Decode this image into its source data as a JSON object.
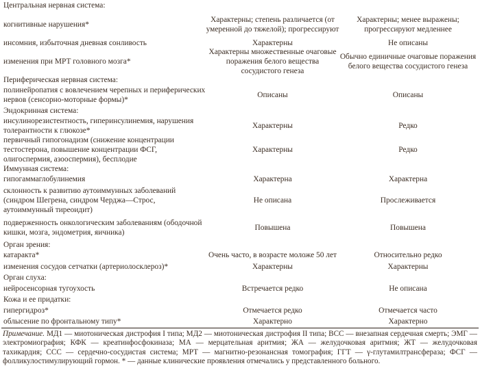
{
  "rows": [
    {
      "label": "Центральная нервная система:",
      "md1": "",
      "md2": ""
    },
    {
      "label": "когнитивные нарушения*",
      "md1": "Характерны; степень различается (от умеренной до тяжелой); прогрессируют",
      "md2": "Характерны; менее выражены; прогрессируют медленнее"
    },
    {
      "label": "инсомния, избыточная дневная сонливость",
      "md1": "Характерны",
      "md2": "Не описаны"
    },
    {
      "label": "изменения при МРТ головного мозга*",
      "md1": "Характерны множественные очаговые поражения белого вещества сосудистого генеза",
      "md2": "Обычно единичные очаговые поражения белого вещества сосудистого генеза"
    },
    {
      "label": "Периферическая нервная система:",
      "md1": "",
      "md2": ""
    },
    {
      "label": "полинейропатия с вовлечением черепных и периферических нервов (сенсорно-моторные формы)*",
      "md1": "Описаны",
      "md2": "Описаны"
    },
    {
      "label": "Эндокринная система:",
      "md1": "",
      "md2": ""
    },
    {
      "label": "инсулинорезистентность, гиперинсулинемия, нарушения толерантности к глюкозе*",
      "md1": "Характерны",
      "md2": "Редко"
    },
    {
      "label": "первичный гипогонадизм (снижение концентрации тестостерона, повышение концентрации ФСГ, олигоспермия, азооспермия), бесплодие",
      "md1": "Характерны",
      "md2": "Редко"
    },
    {
      "label": "Иммунная система:",
      "md1": "",
      "md2": ""
    },
    {
      "label": "гипогаммаглобулинемия",
      "md1": "Характерна",
      "md2": "Характерна"
    },
    {
      "label": "склонность к развитию аутоиммунных заболеваний (синдром Шегрена, синдром Черджа—Строс, аутоиммунный тиреоидит)",
      "md1": "Не описана",
      "md2": "Прослеживается"
    },
    {
      "label": "подверженность онкологическим заболеваниям (ободочной кишки, мозга, эндометрия, яичника)",
      "md1": "Повышена",
      "md2": "Повышена"
    },
    {
      "label": "Орган зрения:",
      "md1": "",
      "md2": ""
    },
    {
      "label": "катаракта*",
      "md1": "Очень часто, в возрасте моложе 50 лет",
      "md2": "Относительно редко"
    },
    {
      "label": "изменения сосудов сетчатки (артериолосклероз)*",
      "md1": "Характерны",
      "md2": "Характерны"
    },
    {
      "label": "Орган слуха:",
      "md1": "",
      "md2": ""
    },
    {
      "label": "нейросенсорная тугоухость",
      "md1": "Встречается редко",
      "md2": "Не описана"
    },
    {
      "label": "Кожа и ее придатки:",
      "md1": "",
      "md2": ""
    },
    {
      "label": "гипергидроз*",
      "md1": "Отмечается редко",
      "md2": "Отмечается часто"
    },
    {
      "label": "облысение по фронтальному типу*",
      "md1": "Характерно",
      "md2": "Характерно"
    }
  ],
  "note": {
    "prefix": "Примечание.",
    "text": " МД1 — миотоническая дистрофия I типа; МД2 — миотоническая дистрофия II типа; ВСС — внезапная сердечная смерть; ЭМГ — электромиография; КФК — креатинфосфокиназа; МА — мерцательная аритмия; ЖА — желудочковая аритмия; ЖТ — желудочковая тахикардия; ССС — сердечно-сосудистая система; МРТ — магнитно-резонансная томография; ГГТ — γ-глутамилтрансфераза; ФСГ — фолликулостимулирующий гормон. * — данные клинические проявления отмечались у представленного больного."
  }
}
